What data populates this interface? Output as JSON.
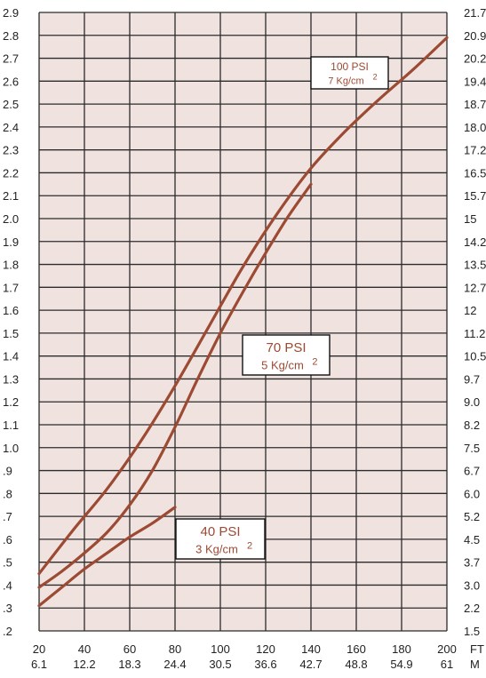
{
  "chart_data": {
    "type": "line",
    "title": "",
    "xlabel": "",
    "ylabel": "",
    "grid": true,
    "colors": {
      "plot_background": "#f0e3df",
      "grid": "#2b2b2b",
      "series": "#9c4a33",
      "label_text": "#9c4a33",
      "axis_text": "#222222"
    },
    "x_ticks_ft": [
      "20",
      "40",
      "60",
      "80",
      "100",
      "120",
      "140",
      "160",
      "180",
      "200"
    ],
    "x_ticks_m": [
      "6.1",
      "12.2",
      "18.3",
      "24.4",
      "30.5",
      "36.6",
      "42.7",
      "48.8",
      "54.9",
      "61"
    ],
    "x_unit_ft": "FT",
    "x_unit_m": "M",
    "xlim": [
      20,
      200
    ],
    "y_ticks_left": [
      "2.9",
      "2.8",
      "2.7",
      "2.6",
      "2.5",
      "2.4",
      "2.3",
      "2.2",
      "2.1",
      "2.0",
      "1.9",
      "1.8",
      "1.7",
      "1.6",
      "1.5",
      "1.4",
      "1.3",
      "1.2",
      "1.1",
      "1.0",
      ".9",
      ".8",
      ".7",
      ".6",
      ".5",
      ".4",
      ".3",
      ".2"
    ],
    "y_ticks_right": [
      "21.7",
      "20.9",
      "20.2",
      "19.4",
      "18.7",
      "18.0",
      "17.2",
      "16.5",
      "15.7",
      "15",
      "14.2",
      "13.5",
      "12.7",
      "12",
      "11.2",
      "10.5",
      "9.7",
      "9.0",
      "8.2",
      "7.5",
      "6.7",
      "6.0",
      "5.2",
      "4.5",
      "3.7",
      "3.0",
      "2.2",
      "1.5"
    ],
    "ylim": [
      0.2,
      2.9
    ],
    "series": [
      {
        "name": "100 PSI",
        "name2": "7 Kg/cm",
        "sup": "2",
        "x": [
          20,
          35,
          50,
          65,
          80,
          95,
          110,
          125,
          140,
          155,
          170,
          185,
          200
        ],
        "y": [
          0.45,
          0.64,
          0.82,
          1.03,
          1.27,
          1.53,
          1.79,
          2.02,
          2.22,
          2.38,
          2.52,
          2.65,
          2.79
        ]
      },
      {
        "name": "70 PSI",
        "name2": "5 Kg/cm",
        "sup": "2",
        "x": [
          20,
          30,
          40,
          50,
          60,
          70,
          80,
          90,
          100,
          110,
          120,
          130,
          140
        ],
        "y": [
          0.39,
          0.46,
          0.54,
          0.63,
          0.75,
          0.9,
          1.09,
          1.3,
          1.5,
          1.68,
          1.85,
          2.01,
          2.15
        ]
      },
      {
        "name": "40 PSI",
        "name2": "3 Kg/cm",
        "sup": "2",
        "x": [
          20,
          30,
          40,
          50,
          60,
          70,
          80
        ],
        "y": [
          0.31,
          0.39,
          0.47,
          0.54,
          0.61,
          0.67,
          0.74
        ]
      }
    ]
  }
}
